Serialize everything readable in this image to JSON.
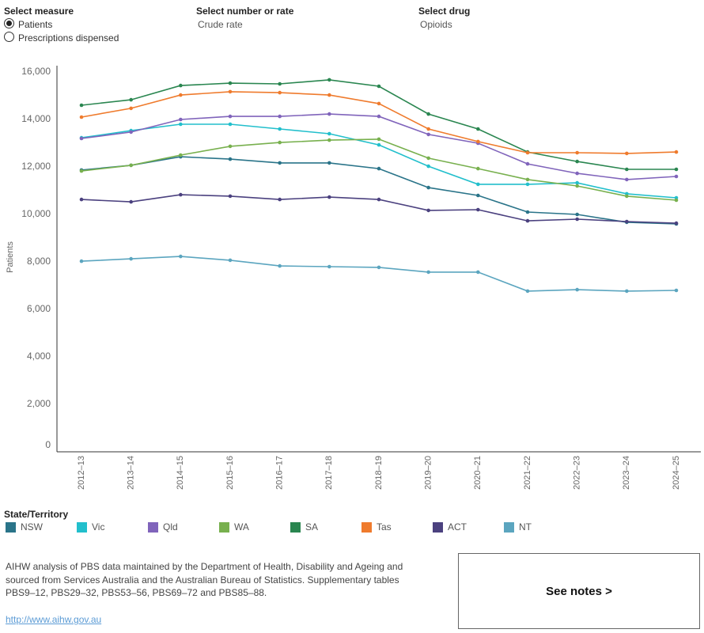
{
  "controls": {
    "measure": {
      "label": "Select measure",
      "options": [
        "Patients",
        "Prescriptions dispensed"
      ]
    },
    "number_or_rate": {
      "label": "Select number or rate",
      "value": "Crude rate"
    },
    "drug": {
      "label": "Select drug",
      "value": "Opioids"
    }
  },
  "chart_data": {
    "type": "line",
    "y_label": "Patients",
    "legend_title": "State/Territory",
    "categories": [
      "2012–13",
      "2013–14",
      "2014–15",
      "2015–16",
      "2016–17",
      "2017–18",
      "2018–19",
      "2019–20",
      "2020–21",
      "2021–22",
      "2022–23",
      "2023–24",
      "2024–25"
    ],
    "ylim": [
      0,
      16000
    ],
    "yticks": [
      0,
      {
        "value": 2000,
        "label": "2,000"
      },
      {
        "value": 4000,
        "label": "4,000"
      },
      {
        "value": 6000,
        "label": "6,000"
      },
      {
        "value": 8000,
        "label": "8,000"
      },
      {
        "value": 10000,
        "label": "10,000"
      },
      {
        "value": 12000,
        "label": "12,000"
      },
      {
        "value": 14000,
        "label": "14,000"
      },
      {
        "value": 16000,
        "label": "16,000"
      }
    ],
    "series": [
      {
        "name": "NSW",
        "color": "#2a7489",
        "values": [
          11870,
          12070,
          12430,
          12330,
          12170,
          12170,
          11930,
          11130,
          10800,
          10100,
          10000,
          9670,
          9600
        ]
      },
      {
        "name": "Vic",
        "color": "#22bfcc",
        "values": [
          13230,
          13530,
          13800,
          13800,
          13600,
          13400,
          12930,
          12030,
          11270,
          11270,
          11330,
          10870,
          10700
        ]
      },
      {
        "name": "Qld",
        "color": "#8064bb",
        "values": [
          13200,
          13470,
          14000,
          14130,
          14130,
          14230,
          14130,
          13370,
          13000,
          12130,
          11730,
          11470,
          11600
        ]
      },
      {
        "name": "WA",
        "color": "#78b04e",
        "values": [
          11830,
          12070,
          12500,
          12870,
          13030,
          13130,
          13170,
          12370,
          11930,
          11470,
          11200,
          10770,
          10600
        ]
      },
      {
        "name": "SA",
        "color": "#2a8650",
        "values": [
          14600,
          14830,
          15430,
          15530,
          15500,
          15670,
          15400,
          14230,
          13600,
          12630,
          12230,
          11900,
          11900
        ]
      },
      {
        "name": "Tas",
        "color": "#ef7b2d",
        "values": [
          14100,
          14470,
          15030,
          15170,
          15130,
          15030,
          14670,
          13600,
          13070,
          12600,
          12600,
          12570,
          12630
        ]
      },
      {
        "name": "ACT",
        "color": "#4b417f",
        "values": [
          10630,
          10530,
          10830,
          10770,
          10630,
          10730,
          10630,
          10170,
          10200,
          9730,
          9800,
          9700,
          9630
        ]
      },
      {
        "name": "NT",
        "color": "#5ba5bf",
        "values": [
          8030,
          8130,
          8230,
          8070,
          7830,
          7800,
          7770,
          7570,
          7570,
          6770,
          6830,
          6770,
          6800
        ]
      }
    ]
  },
  "footer": {
    "source_lines": [
      "AIHW analysis of PBS data maintained by the Department of Health, Disability and Ageing and",
      "sourced from Services Australia and the Australian Bureau of Statistics. Supplementary tables",
      "PBS9–12, PBS29–32, PBS53–56, PBS69–72 and PBS85–88."
    ],
    "link": "http://www.aihw.gov.au",
    "button": "See notes >"
  }
}
